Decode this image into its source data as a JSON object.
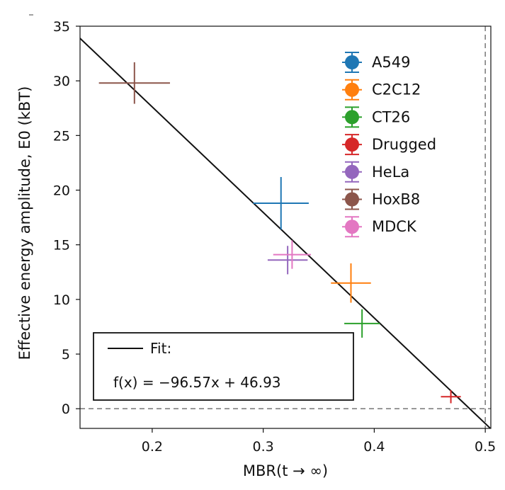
{
  "chart_data": {
    "type": "scatter",
    "xlabel": "MBR(t → ∞)",
    "ylabel": "Effective energy amplitude, E0 (kBT)",
    "xlim": [
      0.135,
      0.505
    ],
    "ylim": [
      -1.8,
      35
    ],
    "xticks": [
      0.2,
      0.3,
      0.4,
      0.5
    ],
    "xtick_labels": [
      "0.2",
      "0.3",
      "0.4",
      "0.5"
    ],
    "yticks": [
      0,
      5,
      10,
      15,
      20,
      25,
      30,
      35
    ],
    "ytick_labels": [
      "0",
      "5",
      "10",
      "15",
      "20",
      "25",
      "30",
      "35"
    ],
    "reference_lines": {
      "vertical_x": 0.5,
      "horizontal_y": 0
    },
    "fit": {
      "slope": -96.57,
      "intercept": 46.93,
      "label": "Fit:",
      "equation": "f(x) = −96.57x + 46.93"
    },
    "legend_position": "upper-right",
    "series": [
      {
        "name": "A549",
        "color": "#1f77b4",
        "x": 0.316,
        "y": 18.8,
        "xerr": 0.025,
        "yerr": 2.4
      },
      {
        "name": "C2C12",
        "color": "#ff7f0e",
        "x": 0.379,
        "y": 11.5,
        "xerr": 0.018,
        "yerr": 1.8
      },
      {
        "name": "CT26",
        "color": "#2ca02c",
        "x": 0.389,
        "y": 7.8,
        "xerr": 0.016,
        "yerr": 1.3
      },
      {
        "name": "Drugged",
        "color": "#d62728",
        "x": 0.469,
        "y": 1.1,
        "xerr": 0.009,
        "yerr": 0.6
      },
      {
        "name": "HeLa",
        "color": "#9467bd",
        "x": 0.322,
        "y": 13.6,
        "xerr": 0.018,
        "yerr": 1.3
      },
      {
        "name": "HoxB8",
        "color": "#8c564b",
        "x": 0.184,
        "y": 29.8,
        "xerr": 0.032,
        "yerr": 1.9
      },
      {
        "name": "MDCK",
        "color": "#e377c2",
        "x": 0.326,
        "y": 14.1,
        "xerr": 0.017,
        "yerr": 1.3
      }
    ]
  }
}
